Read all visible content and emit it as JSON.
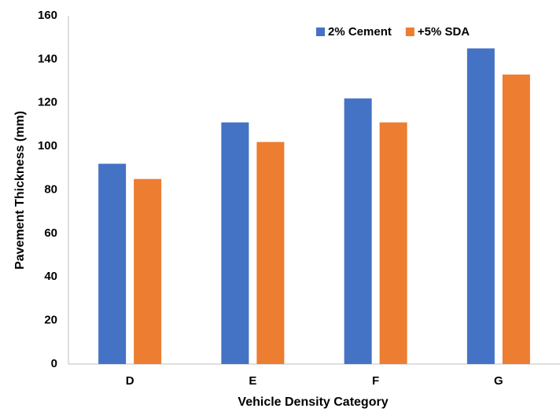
{
  "chart_data": {
    "type": "bar",
    "categories": [
      "D",
      "E",
      "F",
      "G"
    ],
    "series": [
      {
        "name": "2% Cement",
        "color": "#4472c4",
        "values": [
          92,
          111,
          122,
          145
        ]
      },
      {
        "name": "+5% SDA",
        "color": "#ed7d31",
        "values": [
          85,
          102,
          111,
          133
        ]
      }
    ],
    "ylim": [
      0,
      160
    ],
    "yticks": [
      0,
      20,
      40,
      60,
      80,
      100,
      120,
      140,
      160
    ],
    "xlabel": "Vehicle Density Category",
    "ylabel": "Pavement Thickness (mm)",
    "grid": false,
    "legend": "top-right"
  }
}
